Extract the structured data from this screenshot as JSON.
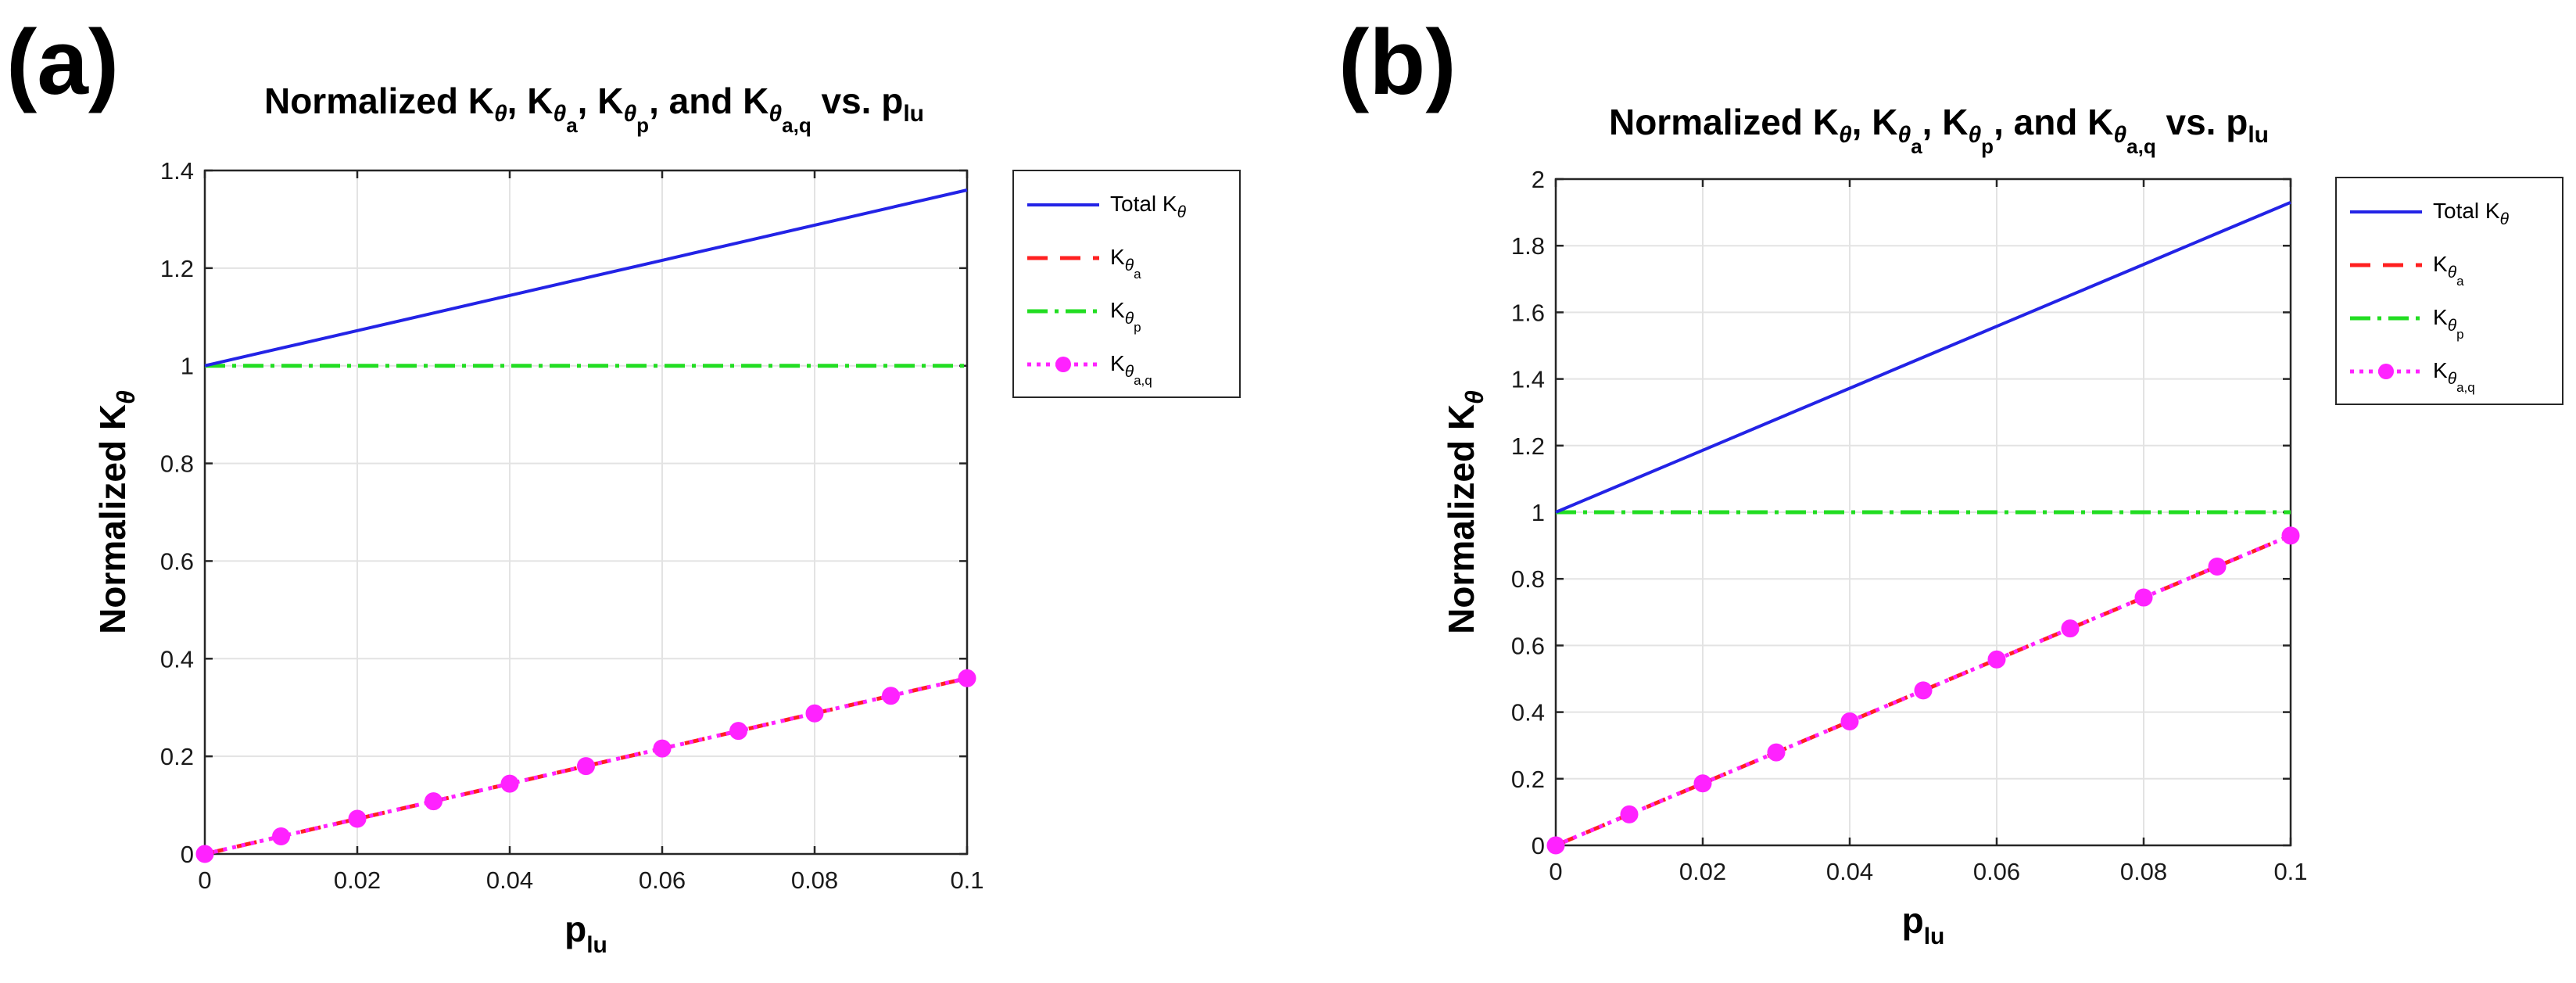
{
  "chart_data": [
    {
      "panel": "(a)",
      "type": "line",
      "title": {
        "parts": [
          "Normalized K",
          "θ",
          ", K",
          "θ",
          "a",
          ", K",
          "θ",
          "p",
          ", and K",
          "θ",
          "a,q",
          " vs. p",
          "lu"
        ]
      },
      "xlabel": {
        "main": "p",
        "sub": "lu"
      },
      "ylabel": {
        "main": "Normalized K",
        "sub": "θ"
      },
      "xlim": [
        0,
        0.1
      ],
      "ylim": [
        0,
        1.4
      ],
      "xticks": [
        0,
        0.02,
        0.04,
        0.06,
        0.08,
        0.1
      ],
      "xtick_labels": [
        "0",
        "0.02",
        "0.04",
        "0.06",
        "0.08",
        "0.1"
      ],
      "yticks": [
        0,
        0.2,
        0.4,
        0.6,
        0.8,
        1,
        1.2,
        1.4
      ],
      "ytick_labels": [
        "0",
        "0.2",
        "0.4",
        "0.6",
        "0.8",
        "1",
        "1.2",
        "1.4"
      ],
      "grid": true,
      "legend_placement": "outside-right-top",
      "x": [
        0,
        0.01,
        0.02,
        0.03,
        0.04,
        0.05,
        0.06,
        0.07,
        0.08,
        0.09,
        0.1
      ],
      "series": [
        {
          "key": "total",
          "legend": {
            "main": "Total K",
            "sub": "θ",
            "subsub": ""
          },
          "color": "#2323e6",
          "style": "solid",
          "marker": "none",
          "values": [
            1.0,
            1.036,
            1.072,
            1.108,
            1.144,
            1.18,
            1.216,
            1.252,
            1.288,
            1.324,
            1.36
          ]
        },
        {
          "key": "a",
          "legend": {
            "main": "K",
            "sub": "θ",
            "subsub": "a"
          },
          "color": "#ff2020",
          "style": "dashed",
          "marker": "none",
          "values": [
            0,
            0.036,
            0.072,
            0.108,
            0.144,
            0.18,
            0.216,
            0.252,
            0.288,
            0.324,
            0.36
          ]
        },
        {
          "key": "p",
          "legend": {
            "main": "K",
            "sub": "θ",
            "subsub": "p"
          },
          "color": "#22dd22",
          "style": "dashdot",
          "marker": "none",
          "values": [
            1,
            1,
            1,
            1,
            1,
            1,
            1,
            1,
            1,
            1,
            1
          ]
        },
        {
          "key": "aq",
          "legend": {
            "main": "K",
            "sub": "θ",
            "subsub": "a,q"
          },
          "color": "#ff22ff",
          "style": "dotted",
          "marker": "circle",
          "values": [
            0,
            0.036,
            0.072,
            0.108,
            0.144,
            0.18,
            0.216,
            0.252,
            0.288,
            0.324,
            0.36
          ]
        }
      ]
    },
    {
      "panel": "(b)",
      "type": "line",
      "title": {
        "parts": [
          "Normalized K",
          "θ",
          ", K",
          "θ",
          "a",
          ", K",
          "θ",
          "p",
          ", and K",
          "θ",
          "a,q",
          " vs. p",
          "lu"
        ]
      },
      "xlabel": {
        "main": "p",
        "sub": "lu"
      },
      "ylabel": {
        "main": "Normalized K",
        "sub": "θ"
      },
      "xlim": [
        0,
        0.1
      ],
      "ylim": [
        0,
        2
      ],
      "xticks": [
        0,
        0.02,
        0.04,
        0.06,
        0.08,
        0.1
      ],
      "xtick_labels": [
        "0",
        "0.02",
        "0.04",
        "0.06",
        "0.08",
        "0.1"
      ],
      "yticks": [
        0,
        0.2,
        0.4,
        0.6,
        0.8,
        1,
        1.2,
        1.4,
        1.6,
        1.8,
        2
      ],
      "ytick_labels": [
        "0",
        "0.2",
        "0.4",
        "0.6",
        "0.8",
        "1",
        "1.2",
        "1.4",
        "1.6",
        "1.8",
        "2"
      ],
      "grid": true,
      "legend_placement": "outside-right-top",
      "x": [
        0,
        0.01,
        0.02,
        0.03,
        0.04,
        0.05,
        0.06,
        0.07,
        0.08,
        0.09,
        0.1
      ],
      "series": [
        {
          "key": "total",
          "legend": {
            "main": "Total K",
            "sub": "θ",
            "subsub": ""
          },
          "color": "#2323e6",
          "style": "solid",
          "marker": "none",
          "values": [
            1.0,
            1.093,
            1.186,
            1.279,
            1.372,
            1.465,
            1.558,
            1.651,
            1.744,
            1.837,
            1.93
          ]
        },
        {
          "key": "a",
          "legend": {
            "main": "K",
            "sub": "θ",
            "subsub": "a"
          },
          "color": "#ff2020",
          "style": "dashed",
          "marker": "none",
          "values": [
            0,
            0.093,
            0.186,
            0.279,
            0.372,
            0.465,
            0.558,
            0.651,
            0.744,
            0.837,
            0.93
          ]
        },
        {
          "key": "p",
          "legend": {
            "main": "K",
            "sub": "θ",
            "subsub": "p"
          },
          "color": "#22dd22",
          "style": "dashdot",
          "marker": "none",
          "values": [
            1,
            1,
            1,
            1,
            1,
            1,
            1,
            1,
            1,
            1,
            1
          ]
        },
        {
          "key": "aq",
          "legend": {
            "main": "K",
            "sub": "θ",
            "subsub": "a,q"
          },
          "color": "#ff22ff",
          "style": "dotted",
          "marker": "circle",
          "values": [
            0,
            0.093,
            0.186,
            0.279,
            0.372,
            0.465,
            0.558,
            0.651,
            0.744,
            0.837,
            0.93
          ]
        }
      ]
    }
  ]
}
